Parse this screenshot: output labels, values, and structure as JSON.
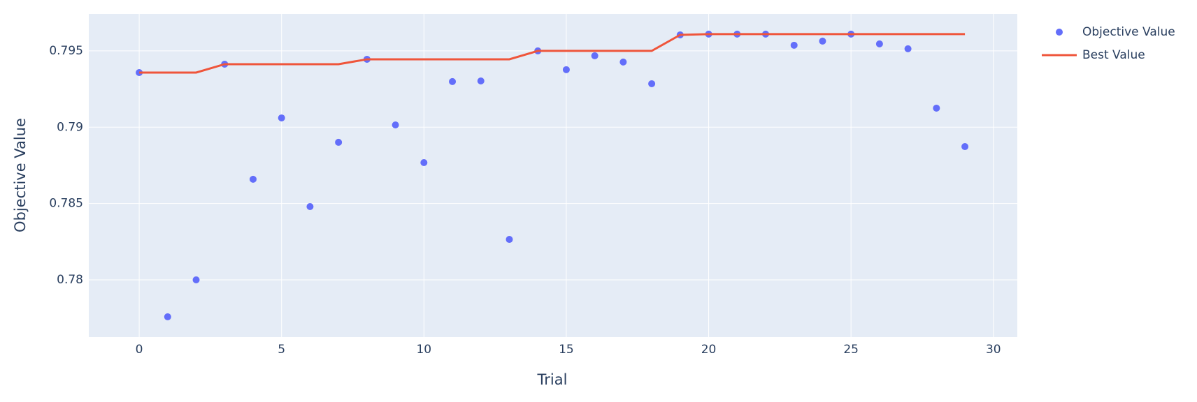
{
  "chart_data": {
    "type": "scatter",
    "x_label": "Trial",
    "y_label": "Objective Value",
    "x": [
      0,
      1,
      2,
      3,
      4,
      5,
      6,
      7,
      8,
      9,
      10,
      11,
      12,
      13,
      14,
      15,
      16,
      17,
      18,
      19,
      20,
      21,
      22,
      23,
      24,
      25,
      26,
      27,
      28,
      29
    ],
    "series": [
      {
        "name": "Objective Value",
        "color": "#636efa",
        "mode": "markers",
        "values": [
          0.79358,
          0.77758,
          0.78,
          0.79413,
          0.78659,
          0.79061,
          0.7848,
          0.78901,
          0.79445,
          0.79015,
          0.78768,
          0.79299,
          0.79303,
          0.78265,
          0.795,
          0.79377,
          0.79468,
          0.79427,
          0.79285,
          0.79605,
          0.7961,
          0.7961,
          0.7961,
          0.79537,
          0.79564,
          0.7961,
          0.79546,
          0.79514,
          0.79125,
          0.78873
        ]
      },
      {
        "name": "Best Value",
        "color": "#ef553b",
        "mode": "lines",
        "values": [
          0.79358,
          0.79358,
          0.79358,
          0.79413,
          0.79413,
          0.79413,
          0.79413,
          0.79413,
          0.79445,
          0.79445,
          0.79445,
          0.79445,
          0.79445,
          0.79445,
          0.795,
          0.795,
          0.795,
          0.795,
          0.795,
          0.79605,
          0.7961,
          0.7961,
          0.7961,
          0.7961,
          0.7961,
          0.7961,
          0.7961,
          0.7961,
          0.7961,
          0.7961
        ]
      }
    ],
    "xlim": [
      -1.77,
      30.84
    ],
    "ylim": [
      0.77625,
      0.79742
    ],
    "xticks": [
      0,
      5,
      10,
      15,
      20,
      25,
      30
    ],
    "yticks": [
      0.78,
      0.785,
      0.79,
      0.795
    ],
    "grid": true,
    "legend": "top-right"
  }
}
